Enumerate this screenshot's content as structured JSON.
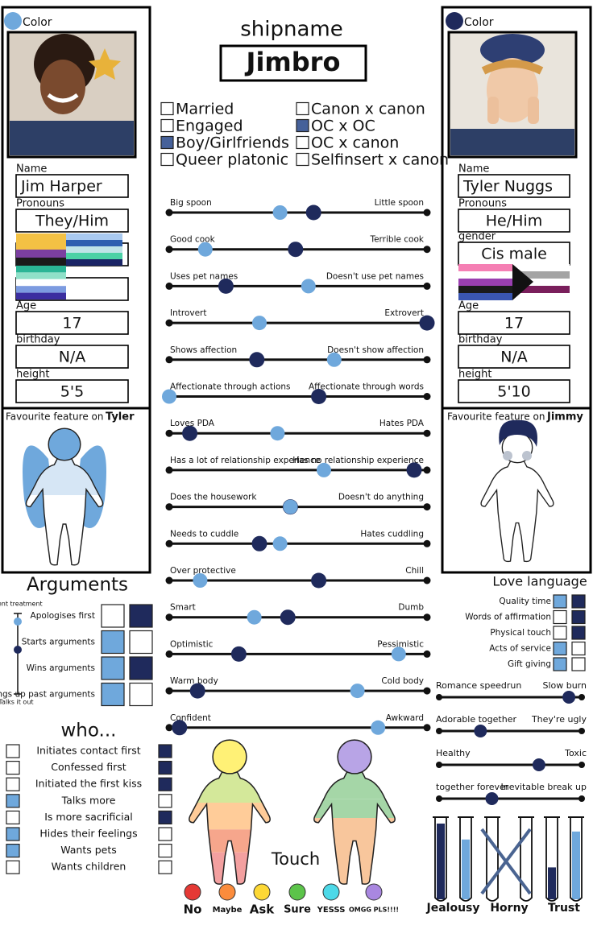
{
  "left_profile": {
    "color_label": "Color",
    "color": "#6fa8dc",
    "name_label": "Name",
    "name": "Jim Harper",
    "pronouns_label": "Pronouns",
    "pronouns": "They/Him",
    "age_label": "Age",
    "age": "17",
    "birthday_label": "birthday",
    "birthday": "N/A",
    "height_label": "height",
    "height": "5'5",
    "feature_label": "Favourite feature on",
    "feature_target": "Tyler"
  },
  "right_profile": {
    "color_label": "Color",
    "color": "#1f2a5c",
    "name_label": "Name",
    "name": "Tyler Nuggs",
    "pronouns_label": "Pronouns",
    "pronouns": "He/Him",
    "gender_label": "gender",
    "gender": "Cis male",
    "age_label": "Age",
    "age": "17",
    "birthday_label": "birthday",
    "birthday": "N/A",
    "height_label": "height",
    "height": "5'10",
    "feature_label": "Favourite feature on",
    "feature_target": "Jimmy"
  },
  "shipname": {
    "label": "shipname",
    "name": "Jimbro"
  },
  "relationship_types": [
    {
      "label": "Married",
      "checked": false
    },
    {
      "label": "Engaged",
      "checked": false
    },
    {
      "label": "Boy/Girlfriends",
      "checked": true
    },
    {
      "label": "Queer platonic",
      "checked": false
    },
    {
      "label": "Canon x canon",
      "checked": false
    },
    {
      "label": "OC x OC",
      "checked": true
    },
    {
      "label": "OC x canon",
      "checked": false
    },
    {
      "label": "Selfinsert x canon",
      "checked": false
    }
  ],
  "sliders": [
    {
      "left": "Big spoon",
      "right": "Little spoon",
      "jim": 43,
      "tyler": 56
    },
    {
      "left": "Good cook",
      "right": "Terrible cook",
      "jim": 14,
      "tyler": 49
    },
    {
      "left": "Uses pet names",
      "right": "Doesn't use pet names",
      "jim": 54,
      "tyler": 22
    },
    {
      "left": "Introvert",
      "right": "Extrovert",
      "jim": 35,
      "tyler": 100
    },
    {
      "left": "Shows affection",
      "right": "Doesn't show affection",
      "jim": 64,
      "tyler": 34
    },
    {
      "left": "Affectionate through actions",
      "right": "Affectionate through words",
      "jim": 0,
      "tyler": 58
    },
    {
      "left": "Loves PDA",
      "right": "Hates PDA",
      "jim": 42,
      "tyler": 8
    },
    {
      "left": "Has a lot of relationship experience",
      "right": "Has no relationship experience",
      "jim": 60,
      "tyler": 95
    },
    {
      "left": "Does the housework",
      "right": "Doesn't do anything",
      "jim": 47,
      "tyler": 47
    },
    {
      "left": "Needs to cuddle",
      "right": "Hates cuddling",
      "jim": 43,
      "tyler": 35
    },
    {
      "left": "Over protective",
      "right": "Chill",
      "jim": 12,
      "tyler": 58
    },
    {
      "left": "Smart",
      "right": "Dumb",
      "jim": 33,
      "tyler": 46
    },
    {
      "left": "Optimistic",
      "right": "Pessimistic",
      "jim": 89,
      "tyler": 27
    },
    {
      "left": "Warm body",
      "right": "Cold body",
      "jim": 73,
      "tyler": 11
    },
    {
      "left": "Confident",
      "right": "Awkward",
      "jim": 81,
      "tyler": 4
    }
  ],
  "side_sliders": [
    {
      "left": "Romance speedrun",
      "right": "Slow burn",
      "value": 91
    },
    {
      "left": "Adorable together",
      "right": "They're ugly",
      "value": 29
    },
    {
      "left": "Healthy",
      "right": "Toxic",
      "value": 70
    },
    {
      "left": "together forever",
      "right": "Inevitable break up",
      "value": 37
    }
  ],
  "arguments": {
    "title": "Arguments",
    "top_label": "Silent treatment",
    "bottom_label": "Talks it out",
    "jim": 10,
    "tyler": 45,
    "rows": [
      {
        "label": "Apologises first",
        "jim": false,
        "tyler": true
      },
      {
        "label": "Starts arguments",
        "jim": true,
        "tyler": false
      },
      {
        "label": "Wins arguments",
        "jim": true,
        "tyler": true
      },
      {
        "label": "Brings up past arguments",
        "jim": true,
        "tyler": false
      }
    ]
  },
  "who": {
    "title": "who...",
    "rows": [
      {
        "label": "Initiates contact first",
        "jim": false,
        "tyler": true
      },
      {
        "label": "Confessed first",
        "jim": false,
        "tyler": true
      },
      {
        "label": "Initiated the first kiss",
        "jim": false,
        "tyler": true
      },
      {
        "label": "Talks more",
        "jim": true,
        "tyler": false
      },
      {
        "label": "Is more sacrificial",
        "jim": false,
        "tyler": true
      },
      {
        "label": "Hides their feelings",
        "jim": true,
        "tyler": false
      },
      {
        "label": "Wants pets",
        "jim": true,
        "tyler": false
      },
      {
        "label": "Wants children",
        "jim": false,
        "tyler": false
      }
    ]
  },
  "love_language": {
    "title": "Love language",
    "rows": [
      {
        "label": "Quality time",
        "jim": true,
        "tyler": true
      },
      {
        "label": "Words of affirmation",
        "jim": false,
        "tyler": true
      },
      {
        "label": "Physical touch",
        "jim": false,
        "tyler": true
      },
      {
        "label": "Acts of service",
        "jim": true,
        "tyler": false
      },
      {
        "label": "Gift giving",
        "jim": true,
        "tyler": false
      }
    ]
  },
  "touch": {
    "title": "Touch",
    "legend": [
      {
        "label": "No",
        "color": "#e53935"
      },
      {
        "label": "Maybe",
        "color": "#fb8c3c"
      },
      {
        "label": "Ask",
        "color": "#fdd835"
      },
      {
        "label": "Sure",
        "color": "#5cc44a"
      },
      {
        "label": "YESSS",
        "color": "#4dd9e8"
      },
      {
        "label": "OMGG PLS!!!!",
        "color": "#a987e0"
      }
    ]
  },
  "meters": [
    {
      "label": "Jealousy",
      "tyler": 95,
      "jim": 75,
      "crossed_out": false
    },
    {
      "label": "Horny",
      "tyler": 0,
      "jim": 0,
      "crossed_out": true
    },
    {
      "label": "Trust",
      "tyler": 40,
      "jim": 85,
      "crossed_out": false
    }
  ]
}
